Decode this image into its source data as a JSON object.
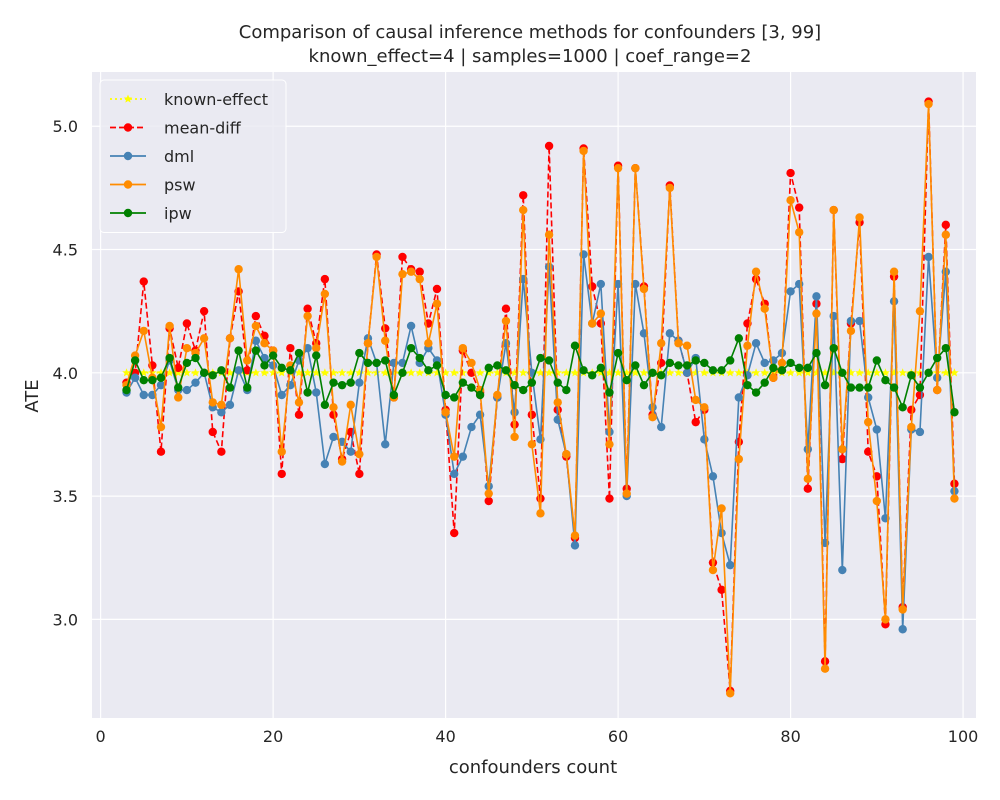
{
  "chart_data": {
    "type": "line",
    "title": "Comparison of causal inference methods for confounders [3, 99]",
    "subtitle": "known_effect=4 | samples=1000 | coef_range=2",
    "xlabel": "confounders count",
    "ylabel": "ATE",
    "xlim": [
      -1,
      101.5
    ],
    "ylim": [
      2.6,
      5.22
    ],
    "x_ticks": [
      0,
      20,
      40,
      60,
      80,
      100
    ],
    "y_ticks": [
      3.0,
      3.5,
      4.0,
      4.5,
      5.0
    ],
    "x_tick_labels": [
      "0",
      "20",
      "40",
      "60",
      "80",
      "100"
    ],
    "y_tick_labels": [
      "3.0",
      "3.5",
      "4.0",
      "4.5",
      "5.0"
    ],
    "grid": true,
    "legend_position": "top-left",
    "x_start": 3,
    "x_end": 99,
    "series": [
      {
        "name": "known-effect",
        "color": "#ffff00",
        "style": "dotted",
        "marker": "star",
        "values": [
          4.0,
          4.0,
          4.0,
          4.0,
          4.0,
          4.0,
          4.0,
          4.0,
          4.0,
          4.0,
          4.0,
          4.0,
          4.0,
          4.0,
          4.0,
          4.0,
          4.0,
          4.0,
          4.0,
          4.0,
          4.0,
          4.0,
          4.0,
          4.0,
          4.0,
          4.0,
          4.0,
          4.0,
          4.0,
          4.0,
          4.0,
          4.0,
          4.0,
          4.0,
          4.0,
          4.0,
          4.0,
          4.0,
          4.0,
          4.0,
          4.0,
          4.0,
          4.0,
          4.0,
          4.0,
          4.0,
          4.0,
          4.0,
          4.0,
          4.0,
          4.0,
          4.0,
          4.0,
          4.0,
          4.0,
          4.0,
          4.0,
          4.0,
          4.0,
          4.0,
          4.0,
          4.0,
          4.0,
          4.0,
          4.0,
          4.0,
          4.0,
          4.0,
          4.0,
          4.0,
          4.0,
          4.0,
          4.0,
          4.0,
          4.0,
          4.0,
          4.0,
          4.0,
          4.0,
          4.0,
          4.0,
          4.0,
          4.0,
          4.0,
          4.0,
          4.0,
          4.0,
          4.0,
          4.0,
          4.0,
          4.0,
          4.0,
          4.0,
          4.0,
          4.0,
          4.0,
          4.0
        ]
      },
      {
        "name": "mean-diff",
        "color": "#ff0000",
        "style": "dashed",
        "marker": "circle",
        "values": [
          3.96,
          4.0,
          4.37,
          4.03,
          3.68,
          4.18,
          4.02,
          4.2,
          4.09,
          4.25,
          3.76,
          3.68,
          4.14,
          4.33,
          4.01,
          4.23,
          4.15,
          4.09,
          3.59,
          4.1,
          3.83,
          4.26,
          4.12,
          4.38,
          3.83,
          3.65,
          3.76,
          3.59,
          4.12,
          4.48,
          4.18,
          3.9,
          4.47,
          4.42,
          4.41,
          4.2,
          4.34,
          3.85,
          3.35,
          4.09,
          4.0,
          3.92,
          3.48,
          3.9,
          4.26,
          3.79,
          4.72,
          3.83,
          3.49,
          4.92,
          3.85,
          3.66,
          3.33,
          4.91,
          4.35,
          4.2,
          3.49,
          4.84,
          3.53,
          4.83,
          4.35,
          3.83,
          4.04,
          4.76,
          4.13,
          4.0,
          3.8,
          3.85,
          3.23,
          3.12,
          2.71,
          3.72,
          4.2,
          4.38,
          4.28,
          3.98,
          4.01,
          4.81,
          4.67,
          3.53,
          4.28,
          2.83,
          4.66,
          3.65,
          4.2,
          4.61,
          3.68,
          3.58,
          2.98,
          4.39,
          3.05,
          3.85,
          3.91,
          5.1,
          3.93,
          4.6,
          3.55
        ]
      },
      {
        "name": "dml",
        "color": "#4682b4",
        "style": "solid",
        "marker": "circle",
        "values": [
          3.92,
          3.98,
          3.91,
          3.91,
          3.95,
          4.05,
          3.93,
          3.93,
          3.96,
          4.0,
          3.86,
          3.84,
          3.87,
          4.01,
          3.93,
          4.13,
          4.06,
          4.03,
          3.91,
          3.95,
          4.05,
          4.1,
          3.92,
          3.63,
          3.74,
          3.72,
          3.68,
          3.96,
          4.14,
          4.04,
          3.71,
          4.04,
          4.04,
          4.19,
          4.04,
          4.1,
          4.05,
          3.83,
          3.59,
          3.66,
          3.78,
          3.83,
          3.54,
          3.9,
          4.12,
          3.84,
          4.38,
          4.0,
          3.73,
          4.43,
          3.81,
          3.67,
          3.3,
          4.48,
          4.2,
          4.36,
          3.76,
          4.36,
          3.5,
          4.36,
          4.16,
          3.86,
          3.78,
          4.16,
          4.13,
          4.0,
          4.06,
          3.73,
          3.58,
          3.35,
          3.22,
          3.9,
          3.99,
          4.12,
          4.04,
          4.05,
          4.08,
          4.33,
          4.36,
          3.69,
          4.31,
          3.31,
          4.23,
          3.2,
          4.21,
          4.21,
          3.9,
          3.77,
          3.41,
          4.29,
          2.96,
          3.77,
          3.76,
          4.47,
          3.98,
          4.41,
          3.52
        ]
      },
      {
        "name": "psw",
        "color": "#ff8c00",
        "style": "solid",
        "marker": "circle",
        "values": [
          3.95,
          4.07,
          4.17,
          3.98,
          3.78,
          4.19,
          3.9,
          4.1,
          4.08,
          4.14,
          3.88,
          3.87,
          4.14,
          4.42,
          4.05,
          4.19,
          4.12,
          4.09,
          3.68,
          4.03,
          3.88,
          4.23,
          4.1,
          4.32,
          3.86,
          3.64,
          3.87,
          3.67,
          4.12,
          4.47,
          4.13,
          3.9,
          4.4,
          4.41,
          4.38,
          4.12,
          4.28,
          3.84,
          3.66,
          4.1,
          4.04,
          3.93,
          3.51,
          3.91,
          4.21,
          3.74,
          4.66,
          3.71,
          3.43,
          4.56,
          3.88,
          3.67,
          3.34,
          4.9,
          4.2,
          4.24,
          3.71,
          4.83,
          3.51,
          4.83,
          4.34,
          3.82,
          4.12,
          4.75,
          4.12,
          4.11,
          3.89,
          3.86,
          3.2,
          3.45,
          2.7,
          3.65,
          4.11,
          4.41,
          4.26,
          3.98,
          4.04,
          4.7,
          4.57,
          3.57,
          4.24,
          2.8,
          4.66,
          3.69,
          4.17,
          4.63,
          3.8,
          3.48,
          3.0,
          4.41,
          3.04,
          3.78,
          4.25,
          5.09,
          3.93,
          4.56,
          3.49
        ]
      },
      {
        "name": "ipw",
        "color": "#008000",
        "style": "solid",
        "marker": "circle",
        "values": [
          3.93,
          4.05,
          3.97,
          3.97,
          3.98,
          4.06,
          3.94,
          4.04,
          4.06,
          4.0,
          3.99,
          4.01,
          3.94,
          4.09,
          3.94,
          4.09,
          4.03,
          4.07,
          4.02,
          4.01,
          4.08,
          3.92,
          4.07,
          3.87,
          3.96,
          3.95,
          3.96,
          4.08,
          4.04,
          4.04,
          4.05,
          3.91,
          4.0,
          4.1,
          4.06,
          4.01,
          4.03,
          3.91,
          3.9,
          3.96,
          3.94,
          3.91,
          4.02,
          4.03,
          4.01,
          3.95,
          3.93,
          3.96,
          4.06,
          4.05,
          3.96,
          3.93,
          4.11,
          4.01,
          3.99,
          4.02,
          3.92,
          4.08,
          3.97,
          4.03,
          3.95,
          4.0,
          3.99,
          4.04,
          4.03,
          4.03,
          4.05,
          4.04,
          4.01,
          4.01,
          4.05,
          4.14,
          3.95,
          3.92,
          3.96,
          4.02,
          4.01,
          4.04,
          4.02,
          4.02,
          4.08,
          3.95,
          4.1,
          4.0,
          3.94,
          3.94,
          3.94,
          4.05,
          3.97,
          3.94,
          3.86,
          3.99,
          3.94,
          4.0,
          4.06,
          4.1,
          3.84
        ]
      }
    ]
  }
}
